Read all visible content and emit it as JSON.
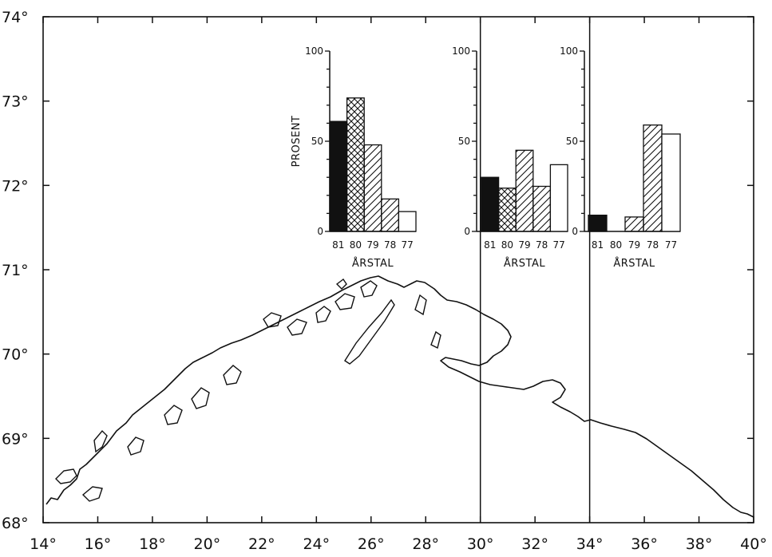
{
  "map": {
    "x_ticks": [
      "14°",
      "16°",
      "18°",
      "20°",
      "22°",
      "24°",
      "26°",
      "28°",
      "30°",
      "32°",
      "34°",
      "36°",
      "38°",
      "40°"
    ],
    "y_ticks": [
      "68°",
      "69°",
      "70°",
      "71°",
      "72°",
      "73°",
      "74°"
    ],
    "lon_range": [
      14,
      40
    ],
    "lat_range": [
      68,
      74
    ],
    "dividers_lon": [
      30,
      34
    ]
  },
  "chart_data": [
    {
      "type": "bar",
      "ylabel": "PROSENT",
      "xlabel": "ÅRSTAL",
      "ylim": [
        0,
        100
      ],
      "y_ticks": [
        "0",
        "50",
        "100"
      ],
      "categories": [
        "81",
        "80",
        "79",
        "78",
        "77"
      ],
      "values": [
        61,
        74,
        48,
        18,
        11
      ],
      "patterns": [
        "solid",
        "crosshatch",
        "hatch",
        "hatch",
        "empty"
      ]
    },
    {
      "type": "bar",
      "xlabel": "ÅRSTAL",
      "ylim": [
        0,
        100
      ],
      "y_ticks": [
        "0",
        "50",
        "100"
      ],
      "categories": [
        "81",
        "80",
        "79",
        "78",
        "77"
      ],
      "values": [
        30,
        24,
        45,
        25,
        37
      ],
      "patterns": [
        "solid",
        "crosshatch",
        "hatch",
        "hatch",
        "empty"
      ]
    },
    {
      "type": "bar",
      "xlabel": "ÅRSTAL",
      "ylim": [
        0,
        100
      ],
      "y_ticks": [
        "0",
        "50",
        "100"
      ],
      "categories": [
        "81",
        "80",
        "79",
        "78",
        "77"
      ],
      "values": [
        9,
        0,
        8,
        59,
        54
      ],
      "patterns": [
        "solid",
        "crosshatch",
        "hatch",
        "hatch",
        "empty"
      ]
    }
  ]
}
